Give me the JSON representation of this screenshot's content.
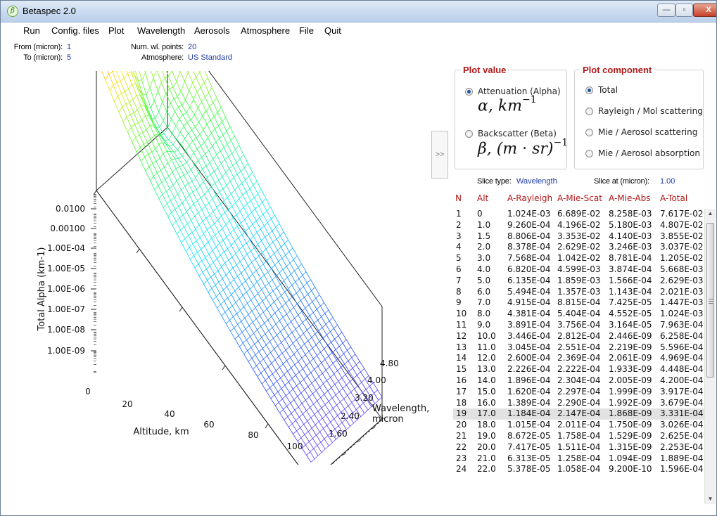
{
  "window": {
    "title": "Betaspec 2.0",
    "app_icon": "beta-icon",
    "controls": {
      "minimize": "—",
      "maximize": "▫",
      "close": "X"
    }
  },
  "menu": {
    "items": [
      "Run",
      "Config. files",
      "Plot",
      "Wavelength",
      "Aerosols",
      "Atmosphere",
      "File",
      "Quit"
    ]
  },
  "info": {
    "from_label": "From (micron):",
    "from_value": "1",
    "to_label": "To (micron):",
    "to_value": "5",
    "numwl_label": "Num. wl. points:",
    "numwl_value": "20",
    "atm_label": "Atmosphere:",
    "atm_value": "US Standard"
  },
  "plot": {
    "ylabel": "Total Alpha (km-1)",
    "yticks": [
      "0.0100",
      "0.00100",
      "1.00E-04",
      "1.00E-05",
      "1.00E-06",
      "1.00E-07",
      "1.00E-08",
      "1.00E-09"
    ],
    "xlabel": "Altitude, km",
    "xticks": [
      "0",
      "20",
      "40",
      "60",
      "80",
      "100"
    ],
    "zlabel_line1": "Wavelength,",
    "zlabel_line2": "micron",
    "zticks": [
      "1.60",
      "2.40",
      "3.20",
      "4.00",
      "4.80"
    ],
    "colormap": [
      "#ff1f1f",
      "#ffe000",
      "#30ff30",
      "#00e8ff",
      "#2040ff",
      "#e020ff"
    ]
  },
  "side_toggle": ">>",
  "plot_value": {
    "title": "Plot value",
    "options": [
      {
        "label": "Attenuation (Alpha)",
        "selected": true,
        "formula": "α, km",
        "sup": "−1"
      },
      {
        "label": "Backscatter (Beta)",
        "selected": false,
        "formula": "β, (m · sr)",
        "sup": "−1"
      }
    ]
  },
  "plot_component": {
    "title": "Plot component",
    "options": [
      {
        "label": "Total",
        "selected": true
      },
      {
        "label": "Rayleigh / Mol scattering",
        "selected": false
      },
      {
        "label": "Mie / Aerosol scattering",
        "selected": false
      },
      {
        "label": "Mie / Aerosol absorption",
        "selected": false
      }
    ]
  },
  "slice": {
    "type_label": "Slice type:",
    "type_value": "Wavelength",
    "at_label": "Slice at (micron):",
    "at_value": "1.00"
  },
  "table": {
    "headers": [
      "N",
      "Alt",
      "A-Rayleigh",
      "A-Mie-Scat",
      "A-Mie-Abs",
      "A-Total"
    ],
    "rows": [
      [
        "1",
        "0",
        "1.024E-03",
        "6.689E-02",
        "8.258E-03",
        "7.617E-02"
      ],
      [
        "2",
        "1.0",
        "9.260E-04",
        "4.196E-02",
        "5.180E-03",
        "4.807E-02"
      ],
      [
        "3",
        "1.5",
        "8.806E-04",
        "3.353E-02",
        "4.140E-03",
        "3.855E-02"
      ],
      [
        "4",
        "2.0",
        "8.378E-04",
        "2.629E-02",
        "3.246E-03",
        "3.037E-02"
      ],
      [
        "5",
        "3.0",
        "7.568E-04",
        "1.042E-02",
        "8.781E-04",
        "1.205E-02"
      ],
      [
        "6",
        "4.0",
        "6.820E-04",
        "4.599E-03",
        "3.874E-04",
        "5.668E-03"
      ],
      [
        "7",
        "5.0",
        "6.135E-04",
        "1.859E-03",
        "1.566E-04",
        "2.629E-03"
      ],
      [
        "8",
        "6.0",
        "5.494E-04",
        "1.357E-03",
        "1.143E-04",
        "2.021E-03"
      ],
      [
        "9",
        "7.0",
        "4.915E-04",
        "8.815E-04",
        "7.425E-05",
        "1.447E-03"
      ],
      [
        "10",
        "8.0",
        "4.381E-04",
        "5.404E-04",
        "4.552E-05",
        "1.024E-03"
      ],
      [
        "11",
        "9.0",
        "3.891E-04",
        "3.756E-04",
        "3.164E-05",
        "7.963E-04"
      ],
      [
        "12",
        "10.0",
        "3.446E-04",
        "2.812E-04",
        "2.446E-09",
        "6.258E-04"
      ],
      [
        "13",
        "11.0",
        "3.045E-04",
        "2.551E-04",
        "2.219E-09",
        "5.596E-04"
      ],
      [
        "14",
        "12.0",
        "2.600E-04",
        "2.369E-04",
        "2.061E-09",
        "4.969E-04"
      ],
      [
        "15",
        "13.0",
        "2.226E-04",
        "2.222E-04",
        "1.933E-09",
        "4.448E-04"
      ],
      [
        "16",
        "14.0",
        "1.896E-04",
        "2.304E-04",
        "2.005E-09",
        "4.200E-04"
      ],
      [
        "17",
        "15.0",
        "1.620E-04",
        "2.297E-04",
        "1.999E-09",
        "3.917E-04"
      ],
      [
        "18",
        "16.0",
        "1.389E-04",
        "2.290E-04",
        "1.992E-09",
        "3.679E-04"
      ],
      [
        "19",
        "17.0",
        "1.184E-04",
        "2.147E-04",
        "1.868E-09",
        "3.331E-04"
      ],
      [
        "20",
        "18.0",
        "1.015E-04",
        "2.011E-04",
        "1.750E-09",
        "3.026E-04"
      ],
      [
        "21",
        "19.0",
        "8.672E-05",
        "1.758E-04",
        "1.529E-09",
        "2.625E-04"
      ],
      [
        "22",
        "20.0",
        "7.417E-05",
        "1.511E-04",
        "1.315E-09",
        "2.253E-04"
      ],
      [
        "23",
        "21.0",
        "6.313E-05",
        "1.258E-04",
        "1.094E-09",
        "1.889E-04"
      ],
      [
        "24",
        "22.0",
        "5.378E-05",
        "1.058E-04",
        "9.200E-10",
        "1.596E-04"
      ]
    ],
    "highlighted_row": 19
  },
  "scrollbar": {
    "up_arrow": "▲",
    "down_arrow": "▼"
  }
}
